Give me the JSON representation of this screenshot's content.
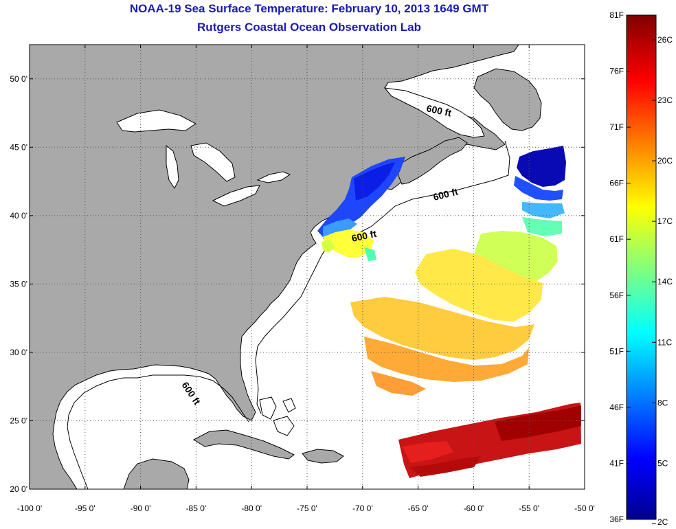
{
  "title": "NOAA-19 Sea Surface Temperature:  February 10, 2013 1649 GMT",
  "subtitle": "Rutgers Coastal Ocean Observation Lab",
  "map": {
    "lon_range": [
      -100,
      -50
    ],
    "lat_range": [
      20,
      52.5
    ],
    "lon_ticks": [
      "-100 0'",
      "-95 0'",
      "-90 0'",
      "-85 0'",
      "-80 0'",
      "-75 0'",
      "-70 0'",
      "-65 0'",
      "-60 0'",
      "-55 0'",
      "-50 0'"
    ],
    "lat_ticks": [
      "50 0'",
      "45 0'",
      "40 0'",
      "35 0'",
      "30 0'",
      "25 0'",
      "20 0'"
    ],
    "contour_label": "600 ft",
    "land_color": "#a9a9a9",
    "ocean_color": "#ffffff",
    "grid": "dotted"
  },
  "colorbar": {
    "fahrenheit_labels": [
      "81F",
      "76F",
      "71F",
      "66F",
      "61F",
      "56F",
      "51F",
      "46F",
      "41F",
      "36F"
    ],
    "celsius_labels": [
      "26C",
      "23C",
      "20C",
      "17C",
      "14C",
      "11C",
      "8C",
      "5C",
      "2C"
    ],
    "colormap": "jet",
    "colors": [
      "#00008f",
      "#0000ff",
      "#00ffff",
      "#ffff00",
      "#ff0000",
      "#800000"
    ]
  }
}
